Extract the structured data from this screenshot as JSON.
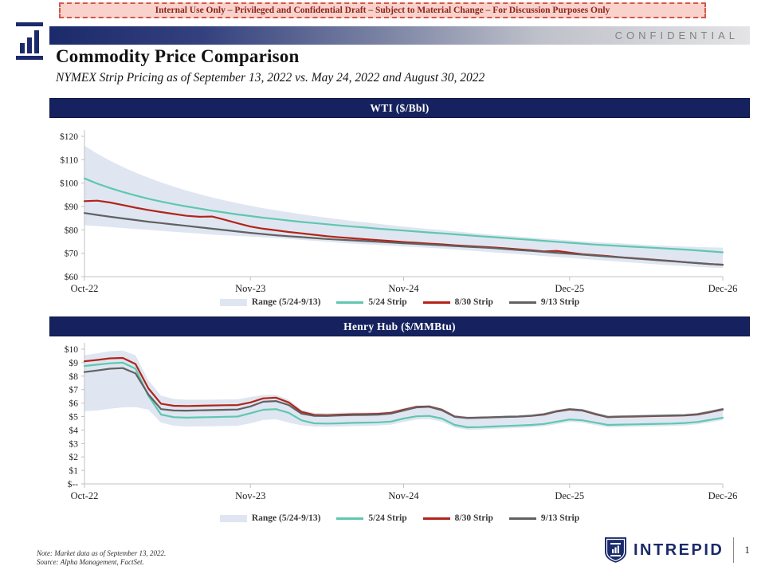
{
  "banner": {
    "text": "Internal Use Only – Privileged and Confidential Draft – Subject to Material Change – For Discussion Purposes Only"
  },
  "header": {
    "confidential": "CONFIDENTIAL",
    "title": "Commodity Price Comparison",
    "subtitle": "NYMEX Strip Pricing as of September 13, 2022 vs. May 24, 2022 and August 30, 2022"
  },
  "colors": {
    "navy": "#16225f",
    "band": "#dfe6f1",
    "teal": "#5fc7b0",
    "red": "#b22418",
    "grayline": "#616161"
  },
  "legend": {
    "range": "Range (5/24-9/13)",
    "s524": "5/24 Strip",
    "s830": "8/30 Strip",
    "s913": "9/13 Strip"
  },
  "footer": {
    "note_line1": "Note: Market data as of September 13, 2022.",
    "note_line2": "Source: Alpha Management, FactSet.",
    "brand": "INTREPID",
    "page": "1"
  },
  "chart_data": [
    {
      "type": "line",
      "title": "WTI ($/Bbl)",
      "ylim": [
        60,
        120
      ],
      "yticks": [
        {
          "v": 60,
          "label": "$60"
        },
        {
          "v": 70,
          "label": "$70"
        },
        {
          "v": 80,
          "label": "$80"
        },
        {
          "v": 90,
          "label": "$90"
        },
        {
          "v": 100,
          "label": "$100"
        },
        {
          "v": 110,
          "label": "$110"
        },
        {
          "v": 120,
          "label": "$120"
        }
      ],
      "xticks": [
        {
          "i": 0,
          "label": "Oct-22"
        },
        {
          "i": 13,
          "label": "Nov-23"
        },
        {
          "i": 25,
          "label": "Nov-24"
        },
        {
          "i": 38,
          "label": "Dec-25"
        },
        {
          "i": 50,
          "label": "Dec-26"
        }
      ],
      "band": {
        "name": "Range (5/24-9/13)",
        "upper": [
          116.0,
          112.6,
          109.6,
          106.9,
          104.5,
          102.3,
          100.3,
          98.5,
          96.8,
          95.3,
          93.9,
          92.6,
          91.4,
          90.3,
          89.3,
          88.4,
          87.5,
          86.7,
          85.9,
          85.2,
          84.5,
          83.8,
          83.2,
          82.6,
          82.0,
          81.4,
          80.9,
          80.4,
          79.9,
          79.4,
          78.9,
          78.4,
          77.9,
          77.5,
          77.1,
          76.7,
          76.3,
          75.9,
          75.5,
          75.1,
          74.8,
          74.5,
          74.2,
          73.9,
          73.6,
          73.3,
          73.1,
          72.9,
          72.7,
          72.5,
          72.4
        ],
        "lower": [
          82.0,
          81.6,
          81.2,
          80.8,
          80.4,
          80.0,
          79.6,
          79.2,
          78.8,
          78.4,
          78.0,
          77.7,
          77.4,
          77.1,
          76.8,
          76.5,
          76.1,
          75.7,
          75.3,
          74.9,
          74.5,
          74.1,
          73.8,
          73.5,
          73.2,
          72.9,
          72.6,
          72.3,
          72.0,
          71.6,
          71.2,
          70.8,
          70.4,
          70.0,
          69.6,
          69.2,
          68.8,
          68.4,
          68.0,
          67.6,
          67.2,
          66.8,
          66.4,
          66.0,
          65.6,
          65.2,
          64.8,
          64.5,
          64.2,
          63.9,
          63.7
        ]
      },
      "series": [
        {
          "name": "5/24 Strip",
          "color_key": "teal",
          "values": [
            102.0,
            99.8,
            97.9,
            96.2,
            94.7,
            93.3,
            92.1,
            91.0,
            90.0,
            89.1,
            88.2,
            87.4,
            86.6,
            85.9,
            85.2,
            84.6,
            84.0,
            83.4,
            82.9,
            82.4,
            81.9,
            81.4,
            81.0,
            80.5,
            80.1,
            79.7,
            79.3,
            78.9,
            78.5,
            78.1,
            77.7,
            77.3,
            76.9,
            76.5,
            76.1,
            75.7,
            75.3,
            74.9,
            74.5,
            74.1,
            73.7,
            73.4,
            73.1,
            72.8,
            72.5,
            72.2,
            71.9,
            71.6,
            71.2,
            70.8,
            70.4
          ]
        },
        {
          "name": "8/30 Strip",
          "color_key": "red",
          "values": [
            92.3,
            92.5,
            91.7,
            90.6,
            89.5,
            88.5,
            87.6,
            86.8,
            86.0,
            85.6,
            85.7,
            84.3,
            82.8,
            81.4,
            80.5,
            79.8,
            79.1,
            78.5,
            77.9,
            77.3,
            76.8,
            76.4,
            76.0,
            75.6,
            75.2,
            74.8,
            74.5,
            74.1,
            73.8,
            73.4,
            73.1,
            72.8,
            72.5,
            72.1,
            71.7,
            71.3,
            70.8,
            71.0,
            70.3,
            69.6,
            69.2,
            68.8,
            68.3,
            67.9,
            67.5,
            67.1,
            66.7,
            66.2,
            65.8,
            65.4,
            65.1
          ]
        },
        {
          "name": "9/13 Strip",
          "color_key": "grayline",
          "values": [
            87.2,
            86.4,
            85.6,
            84.9,
            84.2,
            83.5,
            82.9,
            82.3,
            81.7,
            81.1,
            80.5,
            79.9,
            79.3,
            78.7,
            78.2,
            77.7,
            77.3,
            76.9,
            76.5,
            76.1,
            75.8,
            75.5,
            75.2,
            74.9,
            74.6,
            74.3,
            74.0,
            73.7,
            73.4,
            73.1,
            72.8,
            72.5,
            72.2,
            71.8,
            71.4,
            71.0,
            70.6,
            70.2,
            69.8,
            69.4,
            69.0,
            68.6,
            68.2,
            67.8,
            67.4,
            67.0,
            66.6,
            66.2,
            65.8,
            65.4,
            65.0
          ]
        }
      ]
    },
    {
      "type": "line",
      "title": "Henry Hub ($/MMBtu)",
      "ylim": [
        0,
        10
      ],
      "yticks": [
        {
          "v": 0,
          "label": "$--"
        },
        {
          "v": 1,
          "label": "$1"
        },
        {
          "v": 2,
          "label": "$2"
        },
        {
          "v": 3,
          "label": "$3"
        },
        {
          "v": 4,
          "label": "$4"
        },
        {
          "v": 5,
          "label": "$5"
        },
        {
          "v": 6,
          "label": "$6"
        },
        {
          "v": 7,
          "label": "$7"
        },
        {
          "v": 8,
          "label": "$8"
        },
        {
          "v": 9,
          "label": "$9"
        },
        {
          "v": 10,
          "label": "$10"
        }
      ],
      "xticks": [
        {
          "i": 0,
          "label": "Oct-22"
        },
        {
          "i": 13,
          "label": "Nov-23"
        },
        {
          "i": 25,
          "label": "Nov-24"
        },
        {
          "i": 38,
          "label": "Dec-25"
        },
        {
          "i": 50,
          "label": "Dec-26"
        }
      ],
      "band": {
        "name": "Range (5/24-9/13)",
        "upper": [
          9.55,
          9.7,
          9.85,
          9.9,
          9.55,
          7.7,
          6.55,
          6.3,
          6.25,
          6.25,
          6.26,
          6.27,
          6.28,
          6.45,
          6.6,
          6.62,
          6.25,
          5.52,
          5.28,
          5.25,
          5.28,
          5.3,
          5.31,
          5.33,
          5.4,
          5.62,
          5.83,
          5.86,
          5.62,
          5.12,
          5.01,
          5.03,
          5.06,
          5.09,
          5.12,
          5.17,
          5.28,
          5.5,
          5.65,
          5.57,
          5.31,
          5.08,
          5.11,
          5.13,
          5.15,
          5.17,
          5.19,
          5.21,
          5.28,
          5.46,
          5.67
        ],
        "lower": [
          5.4,
          5.45,
          5.58,
          5.68,
          5.7,
          5.52,
          4.55,
          4.32,
          4.26,
          4.27,
          4.28,
          4.3,
          4.32,
          4.5,
          4.75,
          4.8,
          4.55,
          4.35,
          4.25,
          4.24,
          4.26,
          4.29,
          4.31,
          4.33,
          4.39,
          4.6,
          4.78,
          4.81,
          4.62,
          4.18,
          4.02,
          4.04,
          4.08,
          4.12,
          4.16,
          4.2,
          4.27,
          4.44,
          4.6,
          4.54,
          4.37,
          4.2,
          4.22,
          4.24,
          4.26,
          4.28,
          4.3,
          4.34,
          4.42,
          4.57,
          4.74
        ]
      },
      "series": [
        {
          "name": "5/24 Strip",
          "color_key": "teal",
          "values": [
            8.75,
            8.85,
            8.95,
            9.0,
            8.55,
            6.55,
            5.15,
            4.95,
            4.92,
            4.94,
            4.96,
            4.98,
            5.0,
            5.25,
            5.5,
            5.55,
            5.28,
            4.72,
            4.5,
            4.48,
            4.5,
            4.53,
            4.55,
            4.57,
            4.63,
            4.85,
            5.02,
            5.05,
            4.85,
            4.38,
            4.2,
            4.22,
            4.26,
            4.3,
            4.34,
            4.38,
            4.45,
            4.62,
            4.78,
            4.72,
            4.55,
            4.38,
            4.4,
            4.42,
            4.44,
            4.46,
            4.48,
            4.52,
            4.6,
            4.75,
            4.92
          ]
        },
        {
          "name": "8/30 Strip",
          "color_key": "red",
          "values": [
            9.1,
            9.2,
            9.32,
            9.35,
            8.9,
            7.1,
            5.95,
            5.8,
            5.78,
            5.8,
            5.82,
            5.84,
            5.85,
            6.05,
            6.35,
            6.4,
            6.05,
            5.35,
            5.12,
            5.1,
            5.14,
            5.17,
            5.18,
            5.2,
            5.28,
            5.5,
            5.72,
            5.75,
            5.5,
            5.0,
            4.9,
            4.92,
            4.95,
            4.98,
            5.0,
            5.05,
            5.15,
            5.38,
            5.52,
            5.45,
            5.18,
            4.95,
            4.98,
            5.0,
            5.02,
            5.04,
            5.06,
            5.08,
            5.15,
            5.32,
            5.52
          ]
        },
        {
          "name": "9/13 Strip",
          "color_key": "grayline",
          "values": [
            8.3,
            8.42,
            8.55,
            8.6,
            8.2,
            6.65,
            5.55,
            5.45,
            5.44,
            5.46,
            5.48,
            5.5,
            5.52,
            5.75,
            6.1,
            6.15,
            5.85,
            5.22,
            5.05,
            5.04,
            5.08,
            5.11,
            5.12,
            5.14,
            5.22,
            5.45,
            5.68,
            5.72,
            5.47,
            4.98,
            4.89,
            4.91,
            4.94,
            4.97,
            5.0,
            5.06,
            5.17,
            5.4,
            5.55,
            5.47,
            5.2,
            4.97,
            5.0,
            5.02,
            5.04,
            5.06,
            5.08,
            5.1,
            5.17,
            5.35,
            5.55
          ]
        }
      ]
    }
  ]
}
